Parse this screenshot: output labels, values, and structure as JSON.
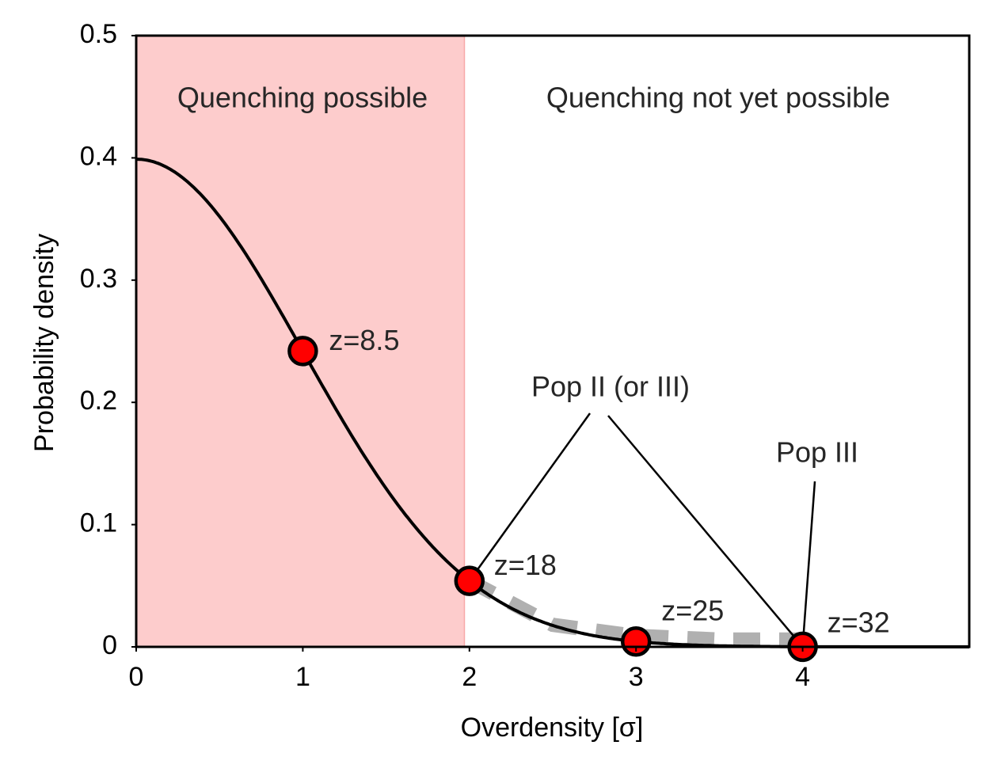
{
  "chart_data": {
    "type": "line",
    "xlabel": "Overdensity [σ]",
    "ylabel": "Probability density",
    "xlim": [
      0,
      5
    ],
    "ylim": [
      0,
      0.5
    ],
    "x_ticks": [
      "0",
      "1",
      "2",
      "3",
      "4"
    ],
    "y_ticks": [
      "0",
      "0.1",
      "0.2",
      "0.3",
      "0.4",
      "0.5"
    ],
    "grid": false,
    "regions": [
      {
        "x_from": 0,
        "x_to": 1.97,
        "label": "Quenching possible",
        "color": "#fdcccc"
      },
      {
        "x_from": 1.97,
        "x_to": 5,
        "label": "Quenching not yet possible",
        "color": "#ffffff"
      }
    ],
    "series": [
      {
        "curve": "standard normal pdf",
        "color": "#000000",
        "style": "solid"
      },
      {
        "x": [
          2,
          2.5,
          3,
          3.5,
          4
        ],
        "y": [
          0.054,
          0.018,
          0.009,
          0.006,
          0.006
        ],
        "color": "#b0b0b0",
        "style": "dashed"
      }
    ],
    "points": [
      {
        "x": 1,
        "y": 0.242,
        "label": "z=8.5"
      },
      {
        "x": 2,
        "y": 0.054,
        "label": "z=18"
      },
      {
        "x": 3,
        "y": 0.0044,
        "label": "z=25"
      },
      {
        "x": 4,
        "y": 0.0001,
        "label": "z=32"
      }
    ],
    "annotations": [
      {
        "text": "Pop II (or III)",
        "targets": [
          2,
          4
        ]
      },
      {
        "text": "Pop III",
        "targets": [
          4
        ]
      }
    ],
    "colors": {
      "region": "#fdcccc",
      "curve": "#000000",
      "dashed": "#b0b0b0",
      "marker": "#ff0000"
    }
  }
}
